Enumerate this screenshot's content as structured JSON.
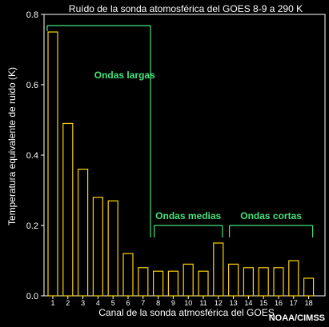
{
  "chart_data": {
    "type": "bar",
    "title": "Ruído de la sonda atomosférica del GOES 8-9 a 290 K",
    "xlabel": "Canal de la sonda atmosférica del GOES",
    "ylabel": "Temperatura equivalente de ruido (K)",
    "credit": "NOAA/CIMSS",
    "categories": [
      "1",
      "2",
      "3",
      "4",
      "5",
      "6",
      "7",
      "8",
      "9",
      "10",
      "11",
      "12",
      "13",
      "14",
      "15",
      "16",
      "17",
      "18"
    ],
    "values": [
      0.75,
      0.49,
      0.36,
      0.28,
      0.27,
      0.12,
      0.08,
      0.07,
      0.07,
      0.09,
      0.07,
      0.15,
      0.09,
      0.08,
      0.08,
      0.08,
      0.1,
      0.05
    ],
    "ylim": [
      0.0,
      0.8
    ],
    "yticks": [
      "0.0",
      "0.2",
      "0.4",
      "0.6",
      "0.8"
    ],
    "grid": false,
    "annotations": [
      {
        "label": "Ondas largas",
        "from_channel": 1,
        "to_channel": 7
      },
      {
        "label": "Ondas medias",
        "from_channel": 8,
        "to_channel": 12
      },
      {
        "label": "Ondas cortas",
        "from_channel": 13,
        "to_channel": 18
      }
    ],
    "colors": {
      "background": "#000000",
      "bar_fill": "#000000",
      "bar_stroke": "#ffd400",
      "axis": "#ffffff",
      "text": "#ffffff",
      "annotation": "#44e27c"
    }
  }
}
